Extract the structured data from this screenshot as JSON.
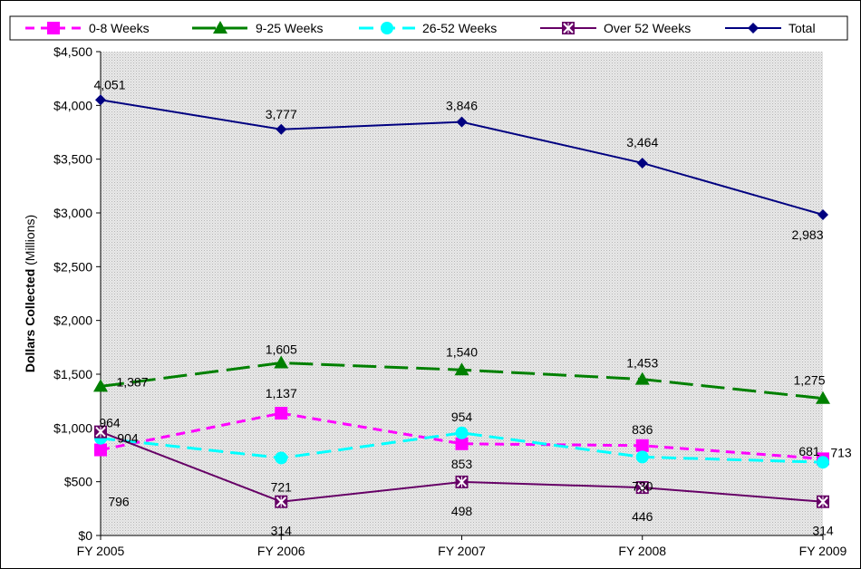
{
  "chart_data": {
    "type": "line",
    "categories": [
      "FY 2005",
      "FY 2006",
      "FY 2007",
      "FY 2008",
      "FY 2009"
    ],
    "ylabel_bold": "Dollars Collected",
    "ylabel_normal": "(Millions)",
    "ylim": [
      0,
      4500
    ],
    "yticks": [
      0,
      500,
      1000,
      1500,
      2000,
      2500,
      3000,
      3500,
      4000,
      4500
    ],
    "ytick_labels": [
      "$0",
      "$500",
      "$1,000",
      "$1,500",
      "$2,000",
      "$2,500",
      "$3,000",
      "$3,500",
      "$4,000",
      "$4,500"
    ],
    "legend_position": "top",
    "series": [
      {
        "name": "0-8 Weeks",
        "values": [
          796,
          1137,
          853,
          836,
          713
        ],
        "labels": [
          "796",
          "1,137",
          "853",
          "836",
          "713"
        ],
        "color": "#ff00ff",
        "marker": "square",
        "dash": "dash-short"
      },
      {
        "name": "9-25 Weeks",
        "values": [
          1387,
          1605,
          1540,
          1453,
          1275
        ],
        "labels": [
          "1,387",
          "1,605",
          "1,540",
          "1,453",
          "1,275"
        ],
        "color": "#008000",
        "marker": "triangle",
        "dash": "dash-long"
      },
      {
        "name": "26-52 Weeks",
        "values": [
          904,
          721,
          954,
          730,
          681
        ],
        "labels": [
          "904",
          "721",
          "954",
          "730",
          "681"
        ],
        "color": "#00ffff",
        "marker": "circle",
        "dash": "dash-medium"
      },
      {
        "name": "Over 52 Weeks",
        "values": [
          964,
          314,
          498,
          446,
          314
        ],
        "labels": [
          "964",
          "314",
          "498",
          "446",
          "314"
        ],
        "color": "#660066",
        "marker": "x-square",
        "dash": "solid"
      },
      {
        "name": "Total",
        "values": [
          4051,
          3777,
          3846,
          3464,
          2983
        ],
        "labels": [
          "4,051",
          "3,777",
          "3,846",
          "3,464",
          "2,983"
        ],
        "color": "#000080",
        "marker": "diamond",
        "dash": "solid"
      }
    ]
  }
}
